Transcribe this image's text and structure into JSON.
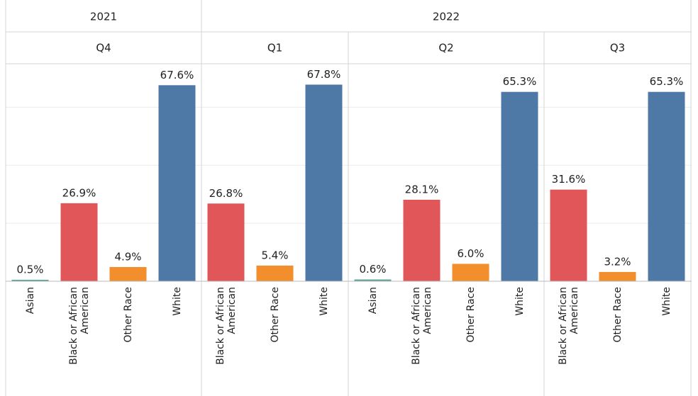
{
  "chart_data": {
    "type": "bar",
    "ylim": [
      0,
      75
    ],
    "yticks": [
      20,
      40,
      60
    ],
    "grid": true,
    "category_colors": {
      "Asian": "#59a197",
      "Black or African American": "#e15759",
      "Other Race": "#f28e2b",
      "White": "#4e79a7"
    },
    "groups": [
      {
        "label": "2021",
        "panels": [
          {
            "label": "Q4",
            "categories": [
              "Asian",
              "Black or African American",
              "Other Race",
              "White"
            ],
            "values": [
              0.5,
              26.9,
              4.9,
              67.6
            ],
            "value_labels": [
              "0.5%",
              "26.9%",
              "4.9%",
              "67.6%"
            ]
          }
        ]
      },
      {
        "label": "2022",
        "panels": [
          {
            "label": "Q1",
            "categories": [
              "Black or African American",
              "Other Race",
              "White"
            ],
            "values": [
              26.8,
              5.4,
              67.8
            ],
            "value_labels": [
              "26.8%",
              "5.4%",
              "67.8%"
            ]
          },
          {
            "label": "Q2",
            "categories": [
              "Asian",
              "Black or African American",
              "Other Race",
              "White"
            ],
            "values": [
              0.6,
              28.1,
              6.0,
              65.3
            ],
            "value_labels": [
              "0.6%",
              "28.1%",
              "6.0%",
              "65.3%"
            ]
          },
          {
            "label": "Q3",
            "categories": [
              "Black or African American",
              "Other Race",
              "White"
            ],
            "values": [
              31.6,
              3.2,
              65.3
            ],
            "value_labels": [
              "31.6%",
              "3.2%",
              "65.3%"
            ]
          }
        ]
      }
    ]
  }
}
